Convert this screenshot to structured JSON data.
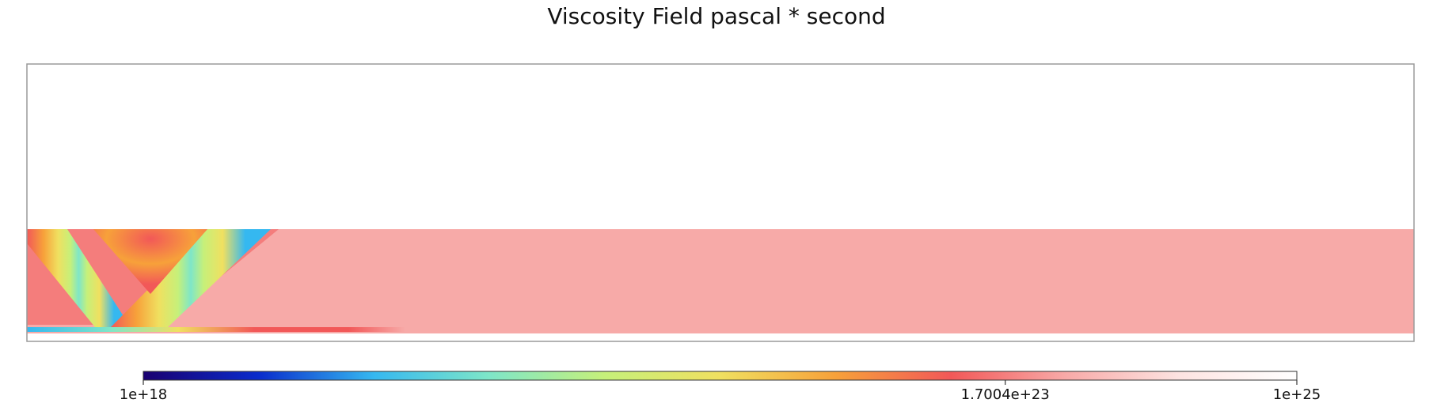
{
  "chart_data": {
    "type": "heatmap",
    "title": "Viscosity Field pascal * second",
    "xlabel": "",
    "ylabel": "",
    "colorscale": "rainbow",
    "color_stops": [
      "#1a0070",
      "#0a2ccc",
      "#35b8f0",
      "#7ee6c8",
      "#c6f07a",
      "#f0e060",
      "#f7a13a",
      "#f25858",
      "#f8aaa8",
      "#fde4e2",
      "#ffffff"
    ],
    "colorbar": {
      "scale": "log",
      "range": [
        1e+18,
        1e+25
      ],
      "ticks": [
        {
          "value": 1e+18,
          "label": "1e+18"
        },
        {
          "value": 1.7004e+23,
          "label": "1.7004e+23"
        },
        {
          "value": 1e+25,
          "label": "1e+25"
        }
      ],
      "placement": "bottom"
    },
    "field": {
      "background_value": 1e+25,
      "background_color": "#ffffff",
      "layer_value": 3e+23,
      "layer_color": "#f7aaa8",
      "regions": "lithosphere layer with V-shaped low-viscosity shear zones at the left edge"
    }
  }
}
